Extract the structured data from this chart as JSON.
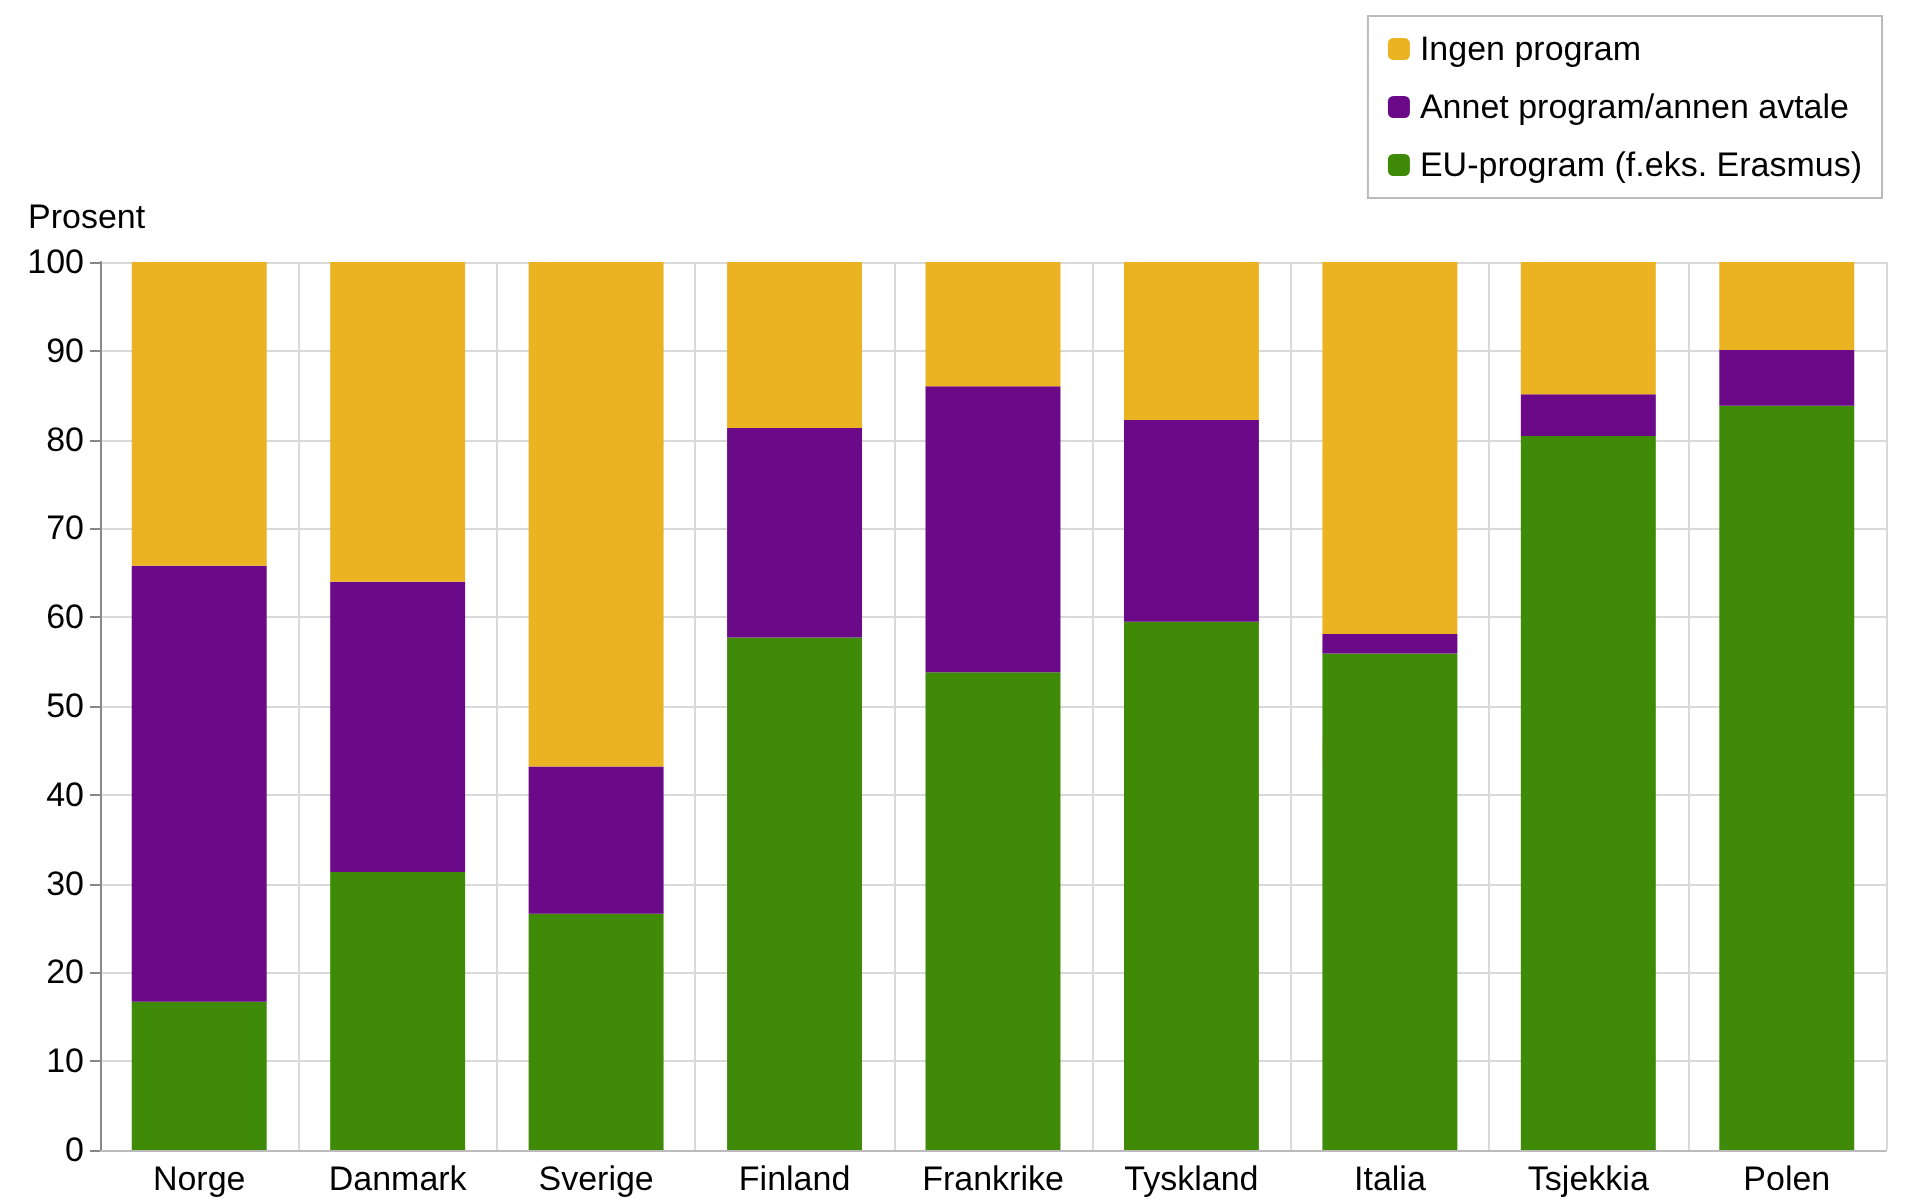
{
  "chart_data": {
    "type": "bar",
    "stacked": true,
    "ylabel": "Prosent",
    "categories": [
      "Norge",
      "Danmark",
      "Sverige",
      "Finland",
      "Frankrike",
      "Tyskland",
      "Italia",
      "Tsjekkia",
      "Polen"
    ],
    "series": [
      {
        "name": "EU-program (f.eks. Erasmus)",
        "color": "#3f8a06",
        "values": [
          16.7,
          31.3,
          26.6,
          57.7,
          53.8,
          59.5,
          55.9,
          80.4,
          83.8
        ]
      },
      {
        "name": "Annet program/annen avtale",
        "color": "#6a0a88",
        "values": [
          49.1,
          32.7,
          16.6,
          23.6,
          32.2,
          22.7,
          2.2,
          4.7,
          6.3
        ]
      },
      {
        "name": "Ingen program",
        "color": "#ebb321",
        "values": [
          34.2,
          36.0,
          56.8,
          18.7,
          14.0,
          17.8,
          41.9,
          14.9,
          9.9
        ]
      }
    ],
    "ylim": [
      0,
      100
    ],
    "yticks": [
      0,
      10,
      20,
      30,
      40,
      50,
      60,
      70,
      80,
      90,
      100
    ],
    "grid": true,
    "legend": "top right"
  }
}
